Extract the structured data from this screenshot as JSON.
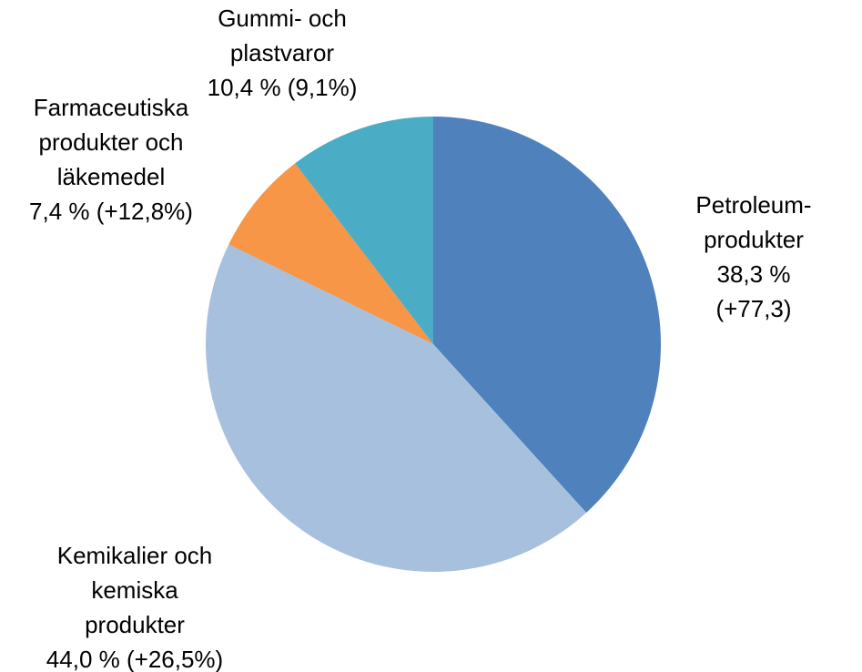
{
  "chart_data": {
    "type": "pie",
    "categories": [
      "Petroleum-\nprodukter",
      "Kemikalier och\nkemiska\nprodukter",
      "Farmaceutiska\nprodukter och\nläkemedel",
      "Gummi- och\nplastvaror"
    ],
    "values": [
      38.3,
      44.0,
      7.4,
      10.4
    ],
    "value_labels": [
      "38,3 % (+77,3)",
      "44,0 % (+26,5%)",
      "7,4 % (+12,8%)",
      "10,4 % (9,1%)"
    ],
    "colors": [
      "#4f81bd",
      "#a7c0de",
      "#f79646",
      "#4bacc6"
    ]
  }
}
